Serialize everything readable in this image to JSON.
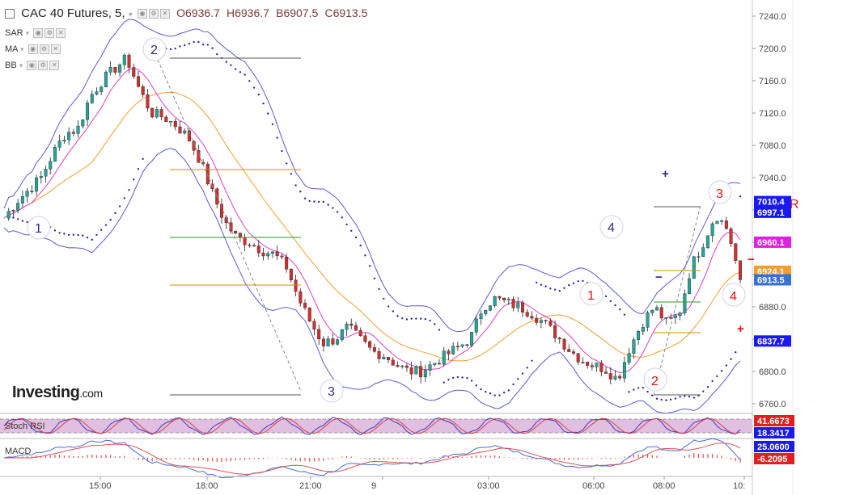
{
  "header": {
    "title": "CAC 40 Futures, 5,",
    "open": "O6936.7",
    "high": "H6936.7",
    "low": "B6907.5",
    "close": "C6913.5"
  },
  "indicators": [
    {
      "label": "SAR"
    },
    {
      "label": "MA"
    },
    {
      "label": "BB"
    }
  ],
  "logo": {
    "main": "Investing",
    "suffix": ".com"
  },
  "colors": {
    "up": "#26a69a",
    "down": "#d32f2f",
    "bb": "#5a5ad6",
    "ma": "#f0a030",
    "pink": "#e040c0",
    "sar": "#2a2aa0",
    "rsi_fill": "#e1bfe0",
    "macd_line": "#4b6be0",
    "macd_signal": "#e05050"
  },
  "chart_data": [
    {
      "type": "line",
      "title": "",
      "ylim": [
        6750,
        7250
      ],
      "yticks": [
        "7240.0",
        "7200.0",
        "7160.0",
        "7120.0",
        "7080.0",
        "7040.0",
        "7000.0",
        "6960.0",
        "6920.0",
        "6880.0",
        "6840.0",
        "6800.0",
        "6760.0"
      ],
      "xticks": [
        "15:00",
        "18:00",
        "21:00",
        "9",
        "03:00",
        "06:00",
        "08:00",
        "10:"
      ],
      "close_path": [
        [
          0,
          6990
        ],
        [
          8,
          7010
        ],
        [
          16,
          7025
        ],
        [
          24,
          7040
        ],
        [
          32,
          7070
        ],
        [
          40,
          7095
        ],
        [
          48,
          7100
        ],
        [
          56,
          7140
        ],
        [
          64,
          7160
        ],
        [
          72,
          7175
        ],
        [
          80,
          7188
        ],
        [
          88,
          7150
        ],
        [
          96,
          7120
        ],
        [
          104,
          7115
        ],
        [
          112,
          7105
        ],
        [
          120,
          7090
        ],
        [
          128,
          7060
        ],
        [
          136,
          7020
        ],
        [
          144,
          6985
        ],
        [
          152,
          6965
        ],
        [
          160,
          6960
        ],
        [
          168,
          6950
        ],
        [
          176,
          6945
        ],
        [
          184,
          6930
        ],
        [
          192,
          6890
        ],
        [
          200,
          6860
        ],
        [
          208,
          6835
        ],
        [
          216,
          6840
        ],
        [
          224,
          6855
        ],
        [
          232,
          6840
        ],
        [
          240,
          6825
        ],
        [
          248,
          6820
        ],
        [
          256,
          6808
        ],
        [
          264,
          6800
        ],
        [
          272,
          6800
        ],
        [
          280,
          6810
        ],
        [
          288,
          6820
        ],
        [
          296,
          6830
        ],
        [
          304,
          6840
        ],
        [
          312,
          6880
        ],
        [
          320,
          6890
        ],
        [
          328,
          6885
        ],
        [
          336,
          6880
        ],
        [
          344,
          6872
        ],
        [
          352,
          6860
        ],
        [
          360,
          6845
        ],
        [
          368,
          6828
        ],
        [
          376,
          6815
        ],
        [
          384,
          6808
        ],
        [
          392,
          6803
        ],
        [
          400,
          6790
        ],
        [
          408,
          6830
        ],
        [
          416,
          6860
        ],
        [
          424,
          6880
        ],
        [
          432,
          6860
        ],
        [
          440,
          6870
        ],
        [
          448,
          6930
        ],
        [
          456,
          6960
        ],
        [
          464,
          6995
        ],
        [
          472,
          6975
        ],
        [
          480,
          6913.5
        ]
      ],
      "price_labels": [
        {
          "text": "7010.4",
          "value": 7010.4,
          "color": "#1a1af0"
        },
        {
          "text": "6997.1",
          "value": 6997.1,
          "color": "#1a1af0"
        },
        {
          "text": "6960.1",
          "value": 6960.1,
          "color": "#e020e0"
        },
        {
          "text": "6924.1",
          "value": 6924.1,
          "color": "#f0a030"
        },
        {
          "text": "6913.5",
          "value": 6913.5,
          "color": "#3a70d0"
        },
        {
          "text": "6837.7",
          "value": 6837.7,
          "color": "#1a1af0"
        }
      ],
      "wave_labels_blue": [
        "1",
        "2",
        "3",
        "4",
        "1",
        "2",
        "3",
        "4"
      ],
      "wave_labels_red": [
        "1",
        "2",
        "3",
        "4"
      ],
      "marks": [
        "R",
        "+",
        "−",
        "+",
        "−"
      ]
    },
    {
      "type": "line",
      "title": "Stoch RSI",
      "ylim": [
        0,
        100
      ],
      "last_values": [
        {
          "text": "41.6673",
          "color": "#e02020"
        },
        {
          "text": "18.3417",
          "color": "#1a1af0"
        }
      ]
    },
    {
      "type": "bar",
      "title": "MACD",
      "last_values": [
        {
          "text": "25.0600",
          "color": "#1a1af0"
        },
        {
          "text": "-6.2095",
          "color": "#e02020"
        }
      ]
    }
  ]
}
